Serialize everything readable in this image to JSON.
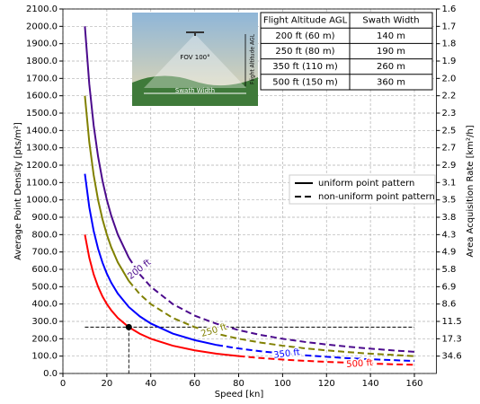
{
  "chart_data": {
    "type": "line",
    "xlabel": "Speed [kn]",
    "ylabel": "Average Point Density [pts/m²]",
    "y2label": "Area Acquisition Rate [km²/h]",
    "xlim": [
      0,
      170
    ],
    "xticks": [
      0,
      20,
      40,
      60,
      80,
      100,
      120,
      140,
      160
    ],
    "ylim": [
      0,
      2100
    ],
    "yticks": [
      {
        "value": 0,
        "label": "0.0"
      },
      {
        "value": 100,
        "label": "100.0"
      },
      {
        "value": 200,
        "label": "200.0"
      },
      {
        "value": 300,
        "label": "300.0"
      },
      {
        "value": 400,
        "label": "400.0"
      },
      {
        "value": 500,
        "label": "500.0"
      },
      {
        "value": 600,
        "label": "600.0"
      },
      {
        "value": 700,
        "label": "700.0"
      },
      {
        "value": 800,
        "label": "800.0"
      },
      {
        "value": 900,
        "label": "900.0"
      },
      {
        "value": 1000,
        "label": "1000.0"
      },
      {
        "value": 1100,
        "label": "1100.0"
      },
      {
        "value": 1200,
        "label": "1200.0"
      },
      {
        "value": 1300,
        "label": "1300.0"
      },
      {
        "value": 1400,
        "label": "1400.0"
      },
      {
        "value": 1500,
        "label": "1500.0"
      },
      {
        "value": 1600,
        "label": "1600.0"
      },
      {
        "value": 1700,
        "label": "1700.0"
      },
      {
        "value": 1800,
        "label": "1800.0"
      },
      {
        "value": 1900,
        "label": "1900.0"
      },
      {
        "value": 2000,
        "label": "2000.0"
      },
      {
        "value": 2100,
        "label": "2100.0"
      }
    ],
    "y2ticks": [
      1.6,
      1.7,
      1.8,
      1.9,
      {
        "value": 2,
        "label": "2.0"
      },
      2.2,
      2.3,
      2.5,
      2.7,
      2.9,
      3.1,
      3.5,
      3.8,
      4.3,
      4.9,
      5.8,
      6.9,
      8.6,
      11.5,
      17.3,
      34.6
    ],
    "grid": true,
    "legend": [
      {
        "label": "uniform point pattern",
        "style": "solid"
      },
      {
        "label": "non-uniform point pattern",
        "style": "dashed"
      }
    ],
    "series": [
      {
        "name": "200 ft",
        "color": "#4b0a8c",
        "segments": [
          {
            "style": "solid",
            "x": [
              10,
              12,
              14,
              16,
              18,
              20,
              22,
              25,
              30
            ],
            "values": [
              2000,
              1667,
              1429,
              1250,
              1111,
              1000,
              909,
              800,
              667
            ]
          },
          {
            "style": "dashed",
            "x": [
              30,
              35,
              40,
              50,
              60,
              70,
              80,
              90,
              100,
              110,
              120,
              130,
              140,
              150,
              160
            ],
            "values": [
              667,
              571,
              500,
              400,
              333,
              286,
              250,
              222,
              200,
              182,
              167,
              154,
              143,
              133,
              125
            ]
          }
        ]
      },
      {
        "name": "250 ft",
        "color": "#808000",
        "segments": [
          {
            "style": "solid",
            "x": [
              10,
              12,
              14,
              16,
              18,
              20,
              22,
              25,
              30
            ],
            "values": [
              1600,
              1333,
              1143,
              1000,
              889,
              800,
              727,
              640,
              533
            ]
          },
          {
            "style": "dashed",
            "x": [
              30,
              35,
              40,
              50,
              60,
              70,
              80,
              90,
              100,
              110,
              120,
              130,
              140,
              150,
              160
            ],
            "values": [
              533,
              457,
              400,
              320,
              267,
              229,
              200,
              178,
              160,
              145,
              133,
              123,
              114,
              107,
              100
            ]
          }
        ]
      },
      {
        "name": "350 ft",
        "color": "#0000ff",
        "segments": [
          {
            "style": "solid",
            "x": [
              10,
              12,
              14,
              16,
              18,
              20,
              22,
              25,
              30,
              35,
              40,
              50,
              60,
              70
            ],
            "values": [
              1150,
              958,
              821,
              719,
              639,
              575,
              523,
              460,
              383,
              329,
              288,
              230,
              192,
              164
            ]
          },
          {
            "style": "dashed",
            "x": [
              70,
              80,
              90,
              100,
              110,
              120,
              130,
              140,
              150,
              160
            ],
            "values": [
              164,
              144,
              128,
              115,
              105,
              96,
              88,
              82,
              77,
              72
            ]
          }
        ]
      },
      {
        "name": "500 ft",
        "color": "#ff0000",
        "segments": [
          {
            "style": "solid",
            "x": [
              10,
              12,
              14,
              16,
              18,
              20,
              22,
              25,
              30,
              35,
              40,
              50,
              60,
              70,
              80
            ],
            "values": [
              800,
              667,
              571,
              500,
              444,
              400,
              364,
              320,
              267,
              229,
              200,
              160,
              133,
              114,
              100
            ]
          },
          {
            "style": "dashed",
            "x": [
              80,
              90,
              100,
              110,
              120,
              130,
              140,
              150,
              160
            ],
            "values": [
              100,
              89,
              80,
              73,
              67,
              62,
              57,
              53,
              50
            ]
          }
        ]
      }
    ],
    "marker": {
      "x": 30,
      "y": 267
    },
    "guide_x": [
      10,
      160
    ],
    "inset": {
      "fov": "FOV 100°",
      "swath": "Swath Width",
      "altitude": "Flight Altitude AGL"
    },
    "table": {
      "header": [
        "Flight Altitude AGL",
        "Swath Width"
      ],
      "rows": [
        [
          "200 ft (60 m)",
          "140 m"
        ],
        [
          "250 ft (80 m)",
          "190 m"
        ],
        [
          "350 ft (110 m)",
          "260 m"
        ],
        [
          "500 ft (150 m)",
          "360 m"
        ]
      ]
    }
  }
}
